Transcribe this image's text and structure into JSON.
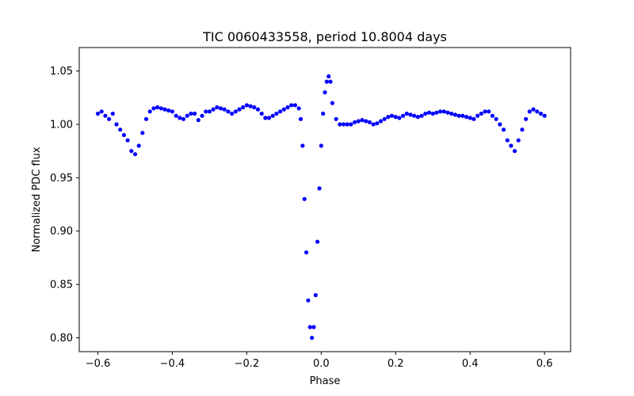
{
  "chart_data": {
    "type": "scatter",
    "title": "TIC 0060433558, period 10.8004 days",
    "xlabel": "Phase",
    "ylabel": "Normalized PDC flux",
    "xlim": [
      -0.65,
      0.67
    ],
    "ylim": [
      0.787,
      1.072
    ],
    "xticks": [
      -0.6,
      -0.4,
      -0.2,
      0.0,
      0.2,
      0.4,
      0.6
    ],
    "xtick_labels": [
      "−0.6",
      "−0.4",
      "−0.2",
      "0.0",
      "0.2",
      "0.4",
      "0.6"
    ],
    "yticks": [
      0.8,
      0.85,
      0.9,
      0.95,
      1.0,
      1.05
    ],
    "ytick_labels": [
      "0.80",
      "0.85",
      "0.90",
      "0.95",
      "1.00",
      "1.05"
    ],
    "grid": false,
    "marker_color": "#0000ff",
    "series": [
      {
        "x": [
          -0.6,
          -0.59,
          -0.58,
          -0.57,
          -0.56,
          -0.55,
          -0.54,
          -0.53,
          -0.52,
          -0.51,
          -0.5,
          -0.49,
          -0.48,
          -0.47,
          -0.46,
          -0.45,
          -0.44,
          -0.43,
          -0.42,
          -0.41,
          -0.4,
          -0.39,
          -0.38,
          -0.37,
          -0.36,
          -0.35,
          -0.34,
          -0.33,
          -0.32,
          -0.31,
          -0.3,
          -0.29,
          -0.28,
          -0.27,
          -0.26,
          -0.25,
          -0.24,
          -0.23,
          -0.22,
          -0.21,
          -0.2,
          -0.19,
          -0.18,
          -0.17,
          -0.16,
          -0.15,
          -0.14,
          -0.13,
          -0.12,
          -0.11,
          -0.1,
          -0.09,
          -0.08,
          -0.07,
          -0.06,
          -0.055,
          -0.05,
          -0.045,
          -0.04,
          -0.035,
          -0.03,
          -0.025,
          -0.02,
          -0.015,
          -0.01,
          -0.005,
          0.0,
          0.005,
          0.01,
          0.015,
          0.02,
          0.025,
          0.03,
          0.04,
          0.05,
          0.06,
          0.07,
          0.08,
          0.09,
          0.1,
          0.11,
          0.12,
          0.13,
          0.14,
          0.15,
          0.16,
          0.17,
          0.18,
          0.19,
          0.2,
          0.21,
          0.22,
          0.23,
          0.24,
          0.25,
          0.26,
          0.27,
          0.28,
          0.29,
          0.3,
          0.31,
          0.32,
          0.33,
          0.34,
          0.35,
          0.36,
          0.37,
          0.38,
          0.39,
          0.4,
          0.41,
          0.42,
          0.43,
          0.44,
          0.45,
          0.46,
          0.47,
          0.48,
          0.49,
          0.5,
          0.51,
          0.52,
          0.53,
          0.54,
          0.55,
          0.56,
          0.57,
          0.58,
          0.59,
          0.6
        ],
        "y": [
          1.01,
          1.012,
          1.008,
          1.005,
          1.01,
          1.0,
          0.995,
          0.99,
          0.985,
          0.975,
          0.972,
          0.98,
          0.992,
          1.005,
          1.012,
          1.015,
          1.016,
          1.015,
          1.014,
          1.013,
          1.012,
          1.008,
          1.006,
          1.005,
          1.008,
          1.01,
          1.01,
          1.004,
          1.008,
          1.012,
          1.012,
          1.014,
          1.016,
          1.015,
          1.014,
          1.012,
          1.01,
          1.012,
          1.014,
          1.016,
          1.018,
          1.017,
          1.016,
          1.014,
          1.01,
          1.006,
          1.006,
          1.008,
          1.01,
          1.012,
          1.014,
          1.016,
          1.018,
          1.018,
          1.015,
          1.005,
          0.98,
          0.93,
          0.88,
          0.835,
          0.81,
          0.8,
          0.81,
          0.84,
          0.89,
          0.94,
          0.98,
          1.01,
          1.03,
          1.04,
          1.045,
          1.04,
          1.02,
          1.005,
          1.0,
          1.0,
          1.0,
          1.0,
          1.002,
          1.003,
          1.004,
          1.003,
          1.002,
          1.0,
          1.001,
          1.003,
          1.005,
          1.007,
          1.008,
          1.007,
          1.006,
          1.008,
          1.01,
          1.009,
          1.008,
          1.007,
          1.008,
          1.01,
          1.011,
          1.01,
          1.011,
          1.012,
          1.012,
          1.011,
          1.01,
          1.009,
          1.008,
          1.008,
          1.007,
          1.006,
          1.005,
          1.008,
          1.01,
          1.012,
          1.012,
          1.008,
          1.005,
          1.0,
          0.995,
          0.985,
          0.98,
          0.975,
          0.985,
          0.995,
          1.005,
          1.012,
          1.014,
          1.012,
          1.01,
          1.008
        ]
      }
    ]
  }
}
